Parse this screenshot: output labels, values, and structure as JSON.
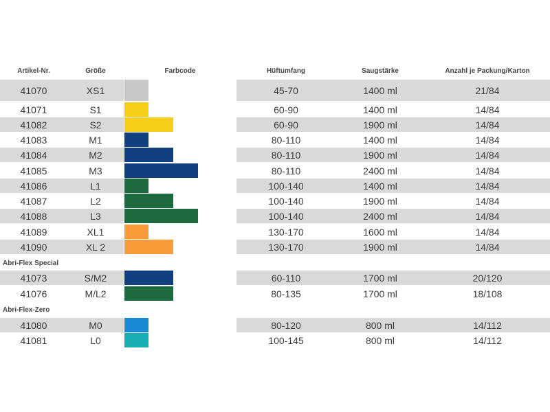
{
  "headers": {
    "article": "Artikel-Nr.",
    "size": "Größe",
    "color": "Farbcode",
    "hip": "Hüftumfang",
    "absorbency": "Saugstärke",
    "pack": "Anzahl je Packung/Karton"
  },
  "sections": [
    {
      "title": "",
      "rows": [
        {
          "article": "41070",
          "size": "XS1",
          "hip": "45-70",
          "absorbency": "1400 ml",
          "pack": "21/84",
          "color": "#c8c8c8",
          "level": 1
        },
        {
          "article": "41071",
          "size": "S1",
          "hip": "60-90",
          "absorbency": "1400 ml",
          "pack": "14/84",
          "color": "#f7cf1b",
          "level": 1
        },
        {
          "article": "41082",
          "size": "S2",
          "hip": "60-90",
          "absorbency": "1900 ml",
          "pack": "14/84",
          "color": "#f7cf1b",
          "level": 2
        },
        {
          "article": "41083",
          "size": "M1",
          "hip": "80-110",
          "absorbency": "1400 ml",
          "pack": "14/84",
          "color": "#123f80",
          "level": 1
        },
        {
          "article": "41084",
          "size": "M2",
          "hip": "80-110",
          "absorbency": "1900 ml",
          "pack": "14/84",
          "color": "#123f80",
          "level": 2
        },
        {
          "article": "41085",
          "size": "M3",
          "hip": "80-110",
          "absorbency": "2400 ml",
          "pack": "14/84",
          "color": "#123f80",
          "level": 3
        },
        {
          "article": "41086",
          "size": "L1",
          "hip": "100-140",
          "absorbency": "1400 ml",
          "pack": "14/84",
          "color": "#1d6a3f",
          "level": 1
        },
        {
          "article": "41087",
          "size": "L2",
          "hip": "100-140",
          "absorbency": "1900 ml",
          "pack": "14/84",
          "color": "#1d6a3f",
          "level": 2
        },
        {
          "article": "41088",
          "size": "L3",
          "hip": "100-140",
          "absorbency": "2400 ml",
          "pack": "14/84",
          "color": "#1d6a3f",
          "level": 3
        },
        {
          "article": "41089",
          "size": "XL1",
          "hip": "130-170",
          "absorbency": "1600 ml",
          "pack": "14/84",
          "color": "#f99b38",
          "level": 1
        },
        {
          "article": "41090",
          "size": "XL 2",
          "hip": "130-170",
          "absorbency": "1900 ml",
          "pack": "14/84",
          "color": "#f99b38",
          "level": 2
        }
      ]
    },
    {
      "title": "Abri-Flex Special",
      "rows": [
        {
          "article": "41073",
          "size": "S/M2",
          "hip": "60-110",
          "absorbency": "1700 ml",
          "pack": "20/120",
          "color": "#123f80",
          "level": 2
        },
        {
          "article": "41076",
          "size": "M/L2",
          "hip": "80-135",
          "absorbency": "1700 ml",
          "pack": "18/108",
          "color": "#1d6a3f",
          "level": 2
        }
      ]
    },
    {
      "title": "Abri-Flex-Zero",
      "rows": [
        {
          "article": "41080",
          "size": "M0",
          "hip": "80-120",
          "absorbency": "800 ml",
          "pack": "14/112",
          "color": "#1b8ad6",
          "level": 1
        },
        {
          "article": "41081",
          "size": "L0",
          "hip": "100-145",
          "absorbency": "800 ml",
          "pack": "14/112",
          "color": "#18aeb3",
          "level": 1
        }
      ]
    }
  ]
}
